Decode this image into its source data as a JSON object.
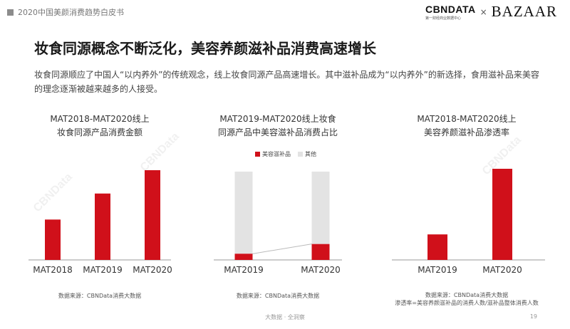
{
  "header": {
    "report_title": "2020中国美颜消费趋势白皮书",
    "brand_cbn": "CBNDATA",
    "brand_cbn_sub": "第一财经商业数据中心",
    "brand_x": "×",
    "brand_bazaar": "BAZAAR"
  },
  "headline": "妆食同源概念不断泛化，美容养颜滋补品消费高速增长",
  "description": "妆食同源顺应了中国人“以内养外”的传统观念，线上妆食同源产品高速增长。其中滋补品成为“以内养外”的新选择，食用滋补品来美容的理念逐渐被越来越多的人接受。",
  "colors": {
    "accent": "#d0101a",
    "other": "#e3e3e3"
  },
  "chart_data": [
    {
      "type": "bar",
      "title_lines": [
        "MAT2018-MAT2020线上",
        "妆食同源产品消费金额"
      ],
      "categories": [
        "MAT2018",
        "MAT2019",
        "MAT2020"
      ],
      "values": [
        0.45,
        0.74,
        1.0
      ],
      "ylim": [
        0,
        1.0
      ],
      "axis": "none",
      "source": "数据来源：CBNData消费大数据"
    },
    {
      "type": "bar",
      "stacked": true,
      "title_lines": [
        "MAT2019-MAT2020线上妆食",
        "同源产品中美容滋补品消费占比"
      ],
      "categories": [
        "MAT2019",
        "MAT2020"
      ],
      "series": [
        {
          "name": "美容滋补品",
          "values": [
            0.07,
            0.18
          ]
        },
        {
          "name": "其他",
          "values": [
            0.93,
            0.82
          ]
        }
      ],
      "ylim": [
        0,
        1
      ],
      "source": "数据来源：CBNData消费大数据"
    },
    {
      "type": "bar",
      "title_lines": [
        "MAT2018-MAT2020线上",
        "美容养颜滋补品渗透率"
      ],
      "categories": [
        "MAT2019",
        "MAT2020"
      ],
      "values": [
        0.28,
        1.0
      ],
      "ylim": [
        0,
        1.0
      ],
      "axis": "none",
      "source_lines": [
        "数据来源：CBNData消费大数据",
        "渗透率=美容养颜滋补品的消费人数/滋补品整体消费人数"
      ]
    }
  ],
  "footer": {
    "text": "大数据 · 全洞察",
    "page": "19"
  },
  "watermark": "CBNData"
}
